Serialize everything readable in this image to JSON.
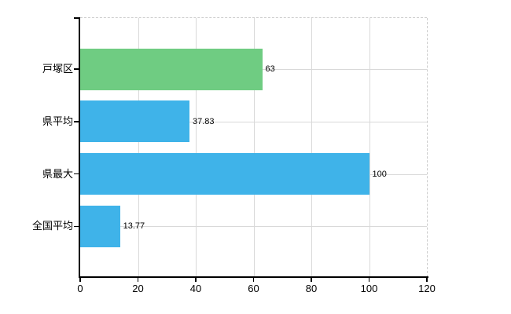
{
  "chart_data": {
    "type": "bar",
    "orientation": "horizontal",
    "categories": [
      "戸塚区",
      "県平均",
      "県最大",
      "全国平均"
    ],
    "values": [
      63,
      37.83,
      100,
      13.77
    ],
    "value_labels": [
      "63",
      "37.83",
      "100",
      "13.77"
    ],
    "series": [
      {
        "name": "",
        "values": [
          63,
          37.83,
          100,
          13.77
        ]
      }
    ],
    "bar_colors": [
      "#6FCC82",
      "#3FB3E9",
      "#3FB3E9",
      "#3FB3E9"
    ],
    "xlim": [
      0,
      120
    ],
    "x_ticks": [
      0,
      20,
      40,
      60,
      80,
      100,
      120
    ],
    "x_tick_labels": [
      "0",
      "20",
      "40",
      "60",
      "80",
      "100",
      "120"
    ],
    "grid": true,
    "legend_position": "none",
    "data_labels_shown": true,
    "colors": {
      "green_bar": "#6FCC82",
      "blue_bar": "#3FB3E9",
      "grid_line": "#D9D9D9",
      "dashed_border": "#CCCCCC",
      "axis_line": "#000000",
      "text": "#000000",
      "background": "#FFFFFF"
    }
  }
}
